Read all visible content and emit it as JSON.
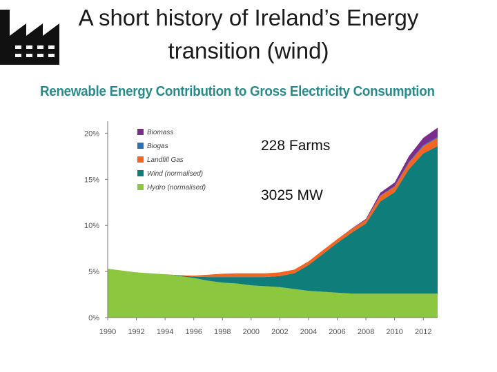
{
  "slide": {
    "title_line1": "A short history of Ireland’s Energy",
    "title_line2": "transition (wind)",
    "factory_icon": "factory-icon"
  },
  "annotations": {
    "farms": "228 Farms",
    "capacity": "3025 MW"
  },
  "chart_data": {
    "type": "area",
    "stacked": true,
    "title": "Renewable Energy Contribution to Gross Electricity Consumption",
    "xlabel": "",
    "ylabel": "",
    "x": [
      1990,
      1991,
      1992,
      1993,
      1994,
      1995,
      1996,
      1997,
      1998,
      1999,
      2000,
      2001,
      2002,
      2003,
      2004,
      2005,
      2006,
      2007,
      2008,
      2009,
      2010,
      2011,
      2012,
      2013
    ],
    "xticks": [
      "1990",
      "1992",
      "1994",
      "1996",
      "1998",
      "2000",
      "2002",
      "2004",
      "2006",
      "2008",
      "2010",
      "2012"
    ],
    "ylim": [
      0,
      21
    ],
    "yticks": [
      "0%",
      "5%",
      "10%",
      "15%",
      "20%"
    ],
    "series": [
      {
        "name": "Hydro (normalised)",
        "color": "#8dc63f",
        "values": [
          5.3,
          5.1,
          4.9,
          4.8,
          4.7,
          4.5,
          4.3,
          4.0,
          3.8,
          3.7,
          3.5,
          3.4,
          3.3,
          3.1,
          2.9,
          2.8,
          2.7,
          2.6,
          2.6,
          2.6,
          2.6,
          2.6,
          2.6,
          2.6
        ]
      },
      {
        "name": "Wind (normalised)",
        "color": "#0f7d7a",
        "values": [
          0.0,
          0.0,
          0.0,
          0.0,
          0.0,
          0.05,
          0.15,
          0.4,
          0.6,
          0.7,
          0.9,
          1.0,
          1.2,
          1.7,
          2.8,
          4.1,
          5.4,
          6.6,
          7.6,
          10.0,
          11.0,
          13.5,
          15.2,
          16.0
        ]
      },
      {
        "name": "Landfill Gas",
        "color": "#f26522",
        "values": [
          0.0,
          0.0,
          0.0,
          0.0,
          0.0,
          0.05,
          0.1,
          0.25,
          0.35,
          0.4,
          0.4,
          0.4,
          0.4,
          0.4,
          0.4,
          0.4,
          0.4,
          0.4,
          0.4,
          0.6,
          0.6,
          0.7,
          0.8,
          0.9
        ]
      },
      {
        "name": "Biogas",
        "color": "#2e6fb7",
        "values": [
          0,
          0,
          0,
          0,
          0,
          0,
          0,
          0,
          0,
          0,
          0,
          0,
          0,
          0,
          0,
          0,
          0,
          0,
          0,
          0.05,
          0.05,
          0.1,
          0.1,
          0.1
        ]
      },
      {
        "name": "Biomass",
        "color": "#7b2d8e",
        "values": [
          0,
          0,
          0,
          0,
          0,
          0,
          0,
          0,
          0,
          0,
          0,
          0,
          0,
          0,
          0,
          0,
          0,
          0.05,
          0.1,
          0.3,
          0.4,
          0.6,
          0.8,
          1.0
        ]
      }
    ],
    "legend": {
      "placement": "top-left",
      "order": [
        "Biomass",
        "Biogas",
        "Landfill Gas",
        "Wind (normalised)",
        "Hydro (normalised)"
      ]
    },
    "grid": false
  }
}
